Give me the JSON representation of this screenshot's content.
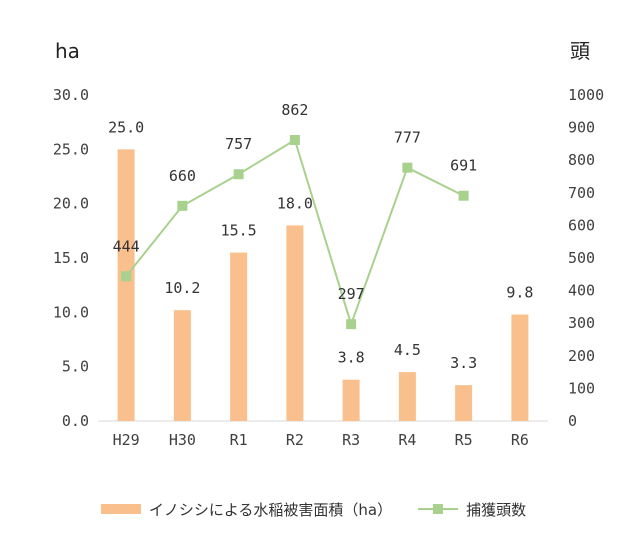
{
  "chart_data": {
    "type": "bar+line",
    "categories": [
      "H29",
      "H30",
      "R1",
      "R2",
      "R3",
      "R4",
      "R5",
      "R6"
    ],
    "series": [
      {
        "name": "イノシシによる水稲被害面積（ha）",
        "type": "bar",
        "axis": "left",
        "values": [
          25.0,
          10.2,
          15.5,
          18.0,
          3.8,
          4.5,
          3.3,
          9.8
        ],
        "labels": [
          "25.0",
          "10.2",
          "15.5",
          "18.0",
          "3.8",
          "4.5",
          "3.3",
          "9.8"
        ],
        "color": "#F9C08D"
      },
      {
        "name": "捕獲頭数",
        "type": "line",
        "axis": "right",
        "values": [
          444,
          660,
          757,
          862,
          297,
          777,
          691,
          null
        ],
        "labels": [
          "444",
          "660",
          "757",
          "862",
          "297",
          "777",
          "691",
          ""
        ],
        "color": "#A9D18E"
      }
    ],
    "y_left": {
      "unit": "ha",
      "min": 0,
      "max": 30,
      "step": 5,
      "ticks": [
        "0.0",
        "5.0",
        "10.0",
        "15.0",
        "20.0",
        "25.0",
        "30.0"
      ]
    },
    "y_right": {
      "unit": "頭",
      "min": 0,
      "max": 1000,
      "step": 100,
      "ticks": [
        "0",
        "100",
        "200",
        "300",
        "400",
        "500",
        "600",
        "700",
        "800",
        "900",
        "1000"
      ]
    },
    "grid": false,
    "legend_position": "bottom"
  }
}
